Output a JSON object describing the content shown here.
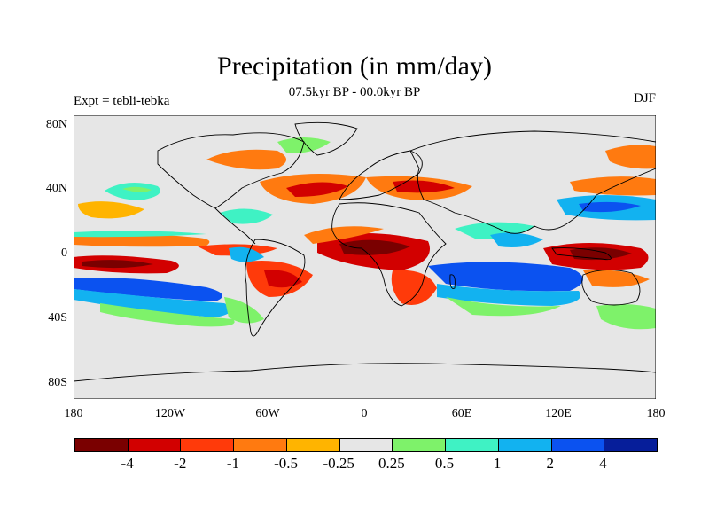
{
  "title": "Precipitation (in mm/day)",
  "subtitle": "07.5kyr BP - 00.0kyr BP",
  "left_string": "Expt = tebli-tebka",
  "right_string": "DJF",
  "map": {
    "projection": "cylindrical-equidistant",
    "lat_ticks": [
      "80N",
      "40N",
      "0",
      "40S",
      "80S"
    ],
    "lon_ticks": [
      "180",
      "120W",
      "60W",
      "0",
      "60E",
      "120E",
      "180"
    ],
    "background_color": "#e6e6e6"
  },
  "colorbar": {
    "colors": [
      "#7a0000",
      "#d20000",
      "#ff3a0a",
      "#ff7a10",
      "#ffb400",
      "#e6e6e6",
      "#7ef26a",
      "#3ff2c4",
      "#12b2f0",
      "#0b52f0",
      "#061e9a"
    ],
    "labels": [
      "-4",
      "-2",
      "-1",
      "-0.5",
      "-0.25",
      "0.25",
      "0.5",
      "1",
      "2",
      "4"
    ]
  },
  "regions": [
    {
      "name": "pacific-dry-band",
      "color": "#d20000"
    },
    {
      "name": "pacific-wet-band",
      "color": "#0b52f0"
    },
    {
      "name": "africa-dry",
      "color": "#d20000"
    },
    {
      "name": "south-america-dry",
      "color": "#ff3a0a"
    },
    {
      "name": "indian-ocean-wet",
      "color": "#0b52f0"
    },
    {
      "name": "maritime-continent-dry",
      "color": "#d20000"
    },
    {
      "name": "north-atlantic-dry",
      "color": "#ff7a10"
    },
    {
      "name": "north-pacific-wet",
      "color": "#12b2f0"
    }
  ]
}
